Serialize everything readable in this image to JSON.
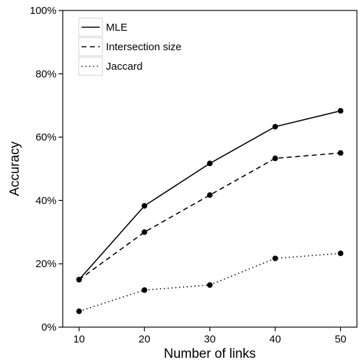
{
  "chart_data": {
    "type": "line",
    "title": "",
    "xlabel": "Number of links",
    "ylabel": "Accuracy",
    "x": [
      10,
      20,
      30,
      40,
      50
    ],
    "xlim": [
      7.5,
      52.5
    ],
    "ylim": [
      0,
      100
    ],
    "x_ticks": [
      "10",
      "20",
      "30",
      "40",
      "50"
    ],
    "y_ticks": [
      "0%",
      "20%",
      "40%",
      "60%",
      "80%",
      "100%"
    ],
    "grid": false,
    "legend_position": "top-left",
    "series": [
      {
        "name": "MLE",
        "line_style": "solid",
        "color": "#000000",
        "values": [
          15,
          38.3,
          51.7,
          63.3,
          68.3
        ]
      },
      {
        "name": "Intersection size",
        "line_style": "dashed",
        "color": "#000000",
        "values": [
          15,
          30,
          41.7,
          53.3,
          55
        ]
      },
      {
        "name": "Jaccard",
        "line_style": "dotted",
        "color": "#000000",
        "values": [
          5,
          11.7,
          13.3,
          21.7,
          23.3
        ]
      }
    ]
  }
}
